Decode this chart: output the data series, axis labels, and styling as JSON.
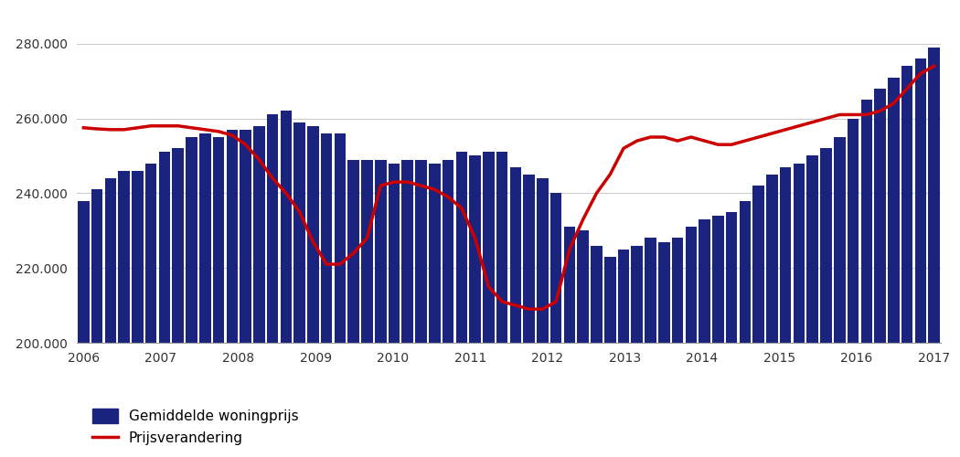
{
  "bar_values": [
    238000,
    241000,
    244000,
    246000,
    246000,
    248000,
    251000,
    252000,
    255000,
    256000,
    255000,
    257000,
    257000,
    258000,
    261000,
    262000,
    259000,
    258000,
    256000,
    256000,
    249000,
    249000,
    249000,
    248000,
    249000,
    249000,
    248000,
    249000,
    251000,
    250000,
    251000,
    251000,
    247000,
    245000,
    244000,
    240000,
    231000,
    230000,
    226000,
    223000,
    225000,
    226000,
    228000,
    227000,
    228000,
    231000,
    233000,
    234000,
    235000,
    238000,
    242000,
    245000,
    247000,
    248000,
    250000,
    252000,
    255000,
    260000,
    265000,
    268000,
    271000,
    274000,
    276000,
    279000
  ],
  "line_values": [
    257500,
    257200,
    257000,
    257000,
    257500,
    258000,
    258000,
    258000,
    257500,
    257000,
    256500,
    255500,
    253000,
    249000,
    244000,
    240000,
    235000,
    227000,
    221000,
    221000,
    224000,
    228000,
    242000,
    243000,
    243000,
    242000,
    241000,
    239000,
    236000,
    228000,
    215000,
    211000,
    210000,
    209000,
    209000,
    211000,
    225000,
    233000,
    240000,
    245000,
    252000,
    254000,
    255000,
    255000,
    254000,
    255000,
    254000,
    253000,
    253000,
    254000,
    255000,
    256000,
    257000,
    258000,
    259000,
    260000,
    261000,
    261000,
    261000,
    262000,
    264000,
    268000,
    272000,
    274000
  ],
  "bar_color": "#1a237e",
  "line_color": "#cc0000",
  "legend_bar_label": "Gemiddelde woningprijs",
  "legend_line_label": "Prijsverandering",
  "ylim_min": 200000,
  "ylim_max": 288000,
  "yticks": [
    200000,
    220000,
    240000,
    260000,
    280000
  ],
  "ytick_labels": [
    "200.000",
    "220.000",
    "240.000",
    "260.000",
    "280.000"
  ],
  "year_labels": [
    "2006",
    "2007",
    "2008",
    "2009",
    "2010",
    "2011",
    "2012",
    "2013",
    "2014",
    "2015",
    "2016",
    "2017"
  ],
  "background_color": "#ffffff",
  "grid_color": "#cccccc"
}
